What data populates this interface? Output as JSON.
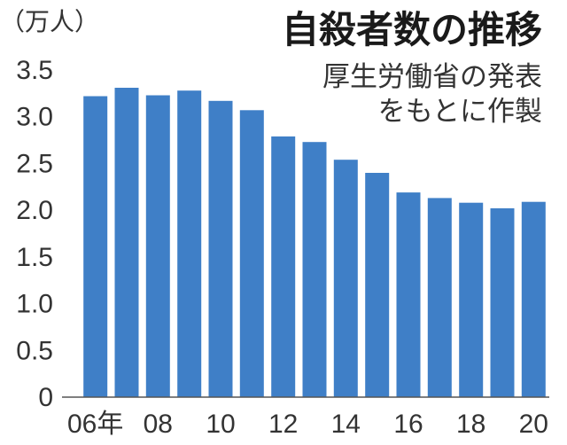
{
  "chart_data": {
    "type": "bar",
    "title": "自殺者数の推移",
    "note_lines": [
      "厚生労働省の発表",
      "をもとに作製"
    ],
    "ylabel": "（万人）",
    "xlabel": "",
    "ylim": [
      0,
      3.5
    ],
    "y_ticks": [
      "0",
      "0.5",
      "1.0",
      "1.5",
      "2.0",
      "2.5",
      "3.0",
      "3.5"
    ],
    "y_tick_values": [
      0,
      0.5,
      1.0,
      1.5,
      2.0,
      2.5,
      3.0,
      3.5
    ],
    "categories": [
      "2006",
      "2007",
      "2008",
      "2009",
      "2010",
      "2011",
      "2012",
      "2013",
      "2014",
      "2015",
      "2016",
      "2017",
      "2018",
      "2019",
      "2020"
    ],
    "x_tick_labels": [
      "06年",
      "",
      "08",
      "",
      "10",
      "",
      "12",
      "",
      "14",
      "",
      "16",
      "",
      "18",
      "",
      "20"
    ],
    "values": [
      3.22,
      3.31,
      3.23,
      3.28,
      3.17,
      3.07,
      2.79,
      2.73,
      2.54,
      2.4,
      2.19,
      2.13,
      2.08,
      2.02,
      2.09
    ],
    "grid": false,
    "legend": "none",
    "bar_color": "#3f7fc7"
  }
}
